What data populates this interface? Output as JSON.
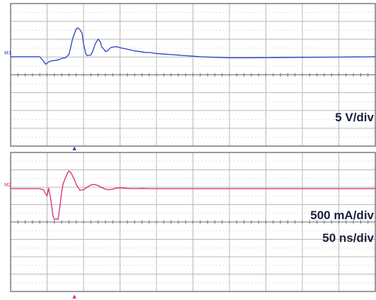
{
  "chart_data": [
    {
      "type": "line",
      "channel_label": "M1",
      "scale_label": "5 V/div",
      "color": "#2a3fc8",
      "x_unit": "ns",
      "x_divisions": 10,
      "y_divisions": 8,
      "trigger_marker": "▲",
      "series": [
        {
          "x": [
            0,
            10,
            20,
            30,
            40,
            45,
            48,
            52,
            55,
            60,
            65,
            70,
            75,
            80,
            85,
            90,
            92,
            95,
            98,
            100,
            103,
            105,
            110,
            113,
            116,
            120,
            123,
            125,
            128,
            130,
            133,
            135,
            137,
            140,
            145,
            150,
            160,
            170,
            180,
            185,
            190,
            200,
            210,
            220,
            230,
            240,
            250,
            260,
            280,
            300,
            330,
            360,
            400,
            450,
            500
          ],
          "y": [
            0,
            0,
            0,
            0,
            0,
            -0.4,
            -0.7,
            -0.5,
            -0.4,
            -0.35,
            -0.3,
            -0.15,
            -0.1,
            0.2,
            1.7,
            2.6,
            2.7,
            2.55,
            2.2,
            1.2,
            0.3,
            0.1,
            0.15,
            0.6,
            1.2,
            1.65,
            1.4,
            0.9,
            0.7,
            0.5,
            0.55,
            0.7,
            0.85,
            0.9,
            0.95,
            0.85,
            0.7,
            0.55,
            0.45,
            0.4,
            0.4,
            0.3,
            0.25,
            0.2,
            0.15,
            0.1,
            0.05,
            0.0,
            -0.05,
            -0.1,
            -0.1,
            -0.08,
            -0.05,
            -0.03,
            0.0
          ]
        }
      ]
    },
    {
      "type": "line",
      "channel_label": "M2",
      "scale_label": "500 mA/div",
      "time_label": "50 ns/div",
      "color": "#d62a7a",
      "x_unit": "ns",
      "x_divisions": 10,
      "y_divisions": 8,
      "trigger_marker": "▲",
      "series": [
        {
          "x": [
            0,
            20,
            40,
            45,
            48,
            50,
            52,
            55,
            58,
            60,
            63,
            65,
            68,
            70,
            72,
            75,
            78,
            80,
            83,
            85,
            88,
            90,
            95,
            100,
            105,
            110,
            115,
            120,
            125,
            130,
            135,
            140,
            145,
            150,
            160,
            170,
            180,
            190,
            200,
            220,
            250,
            300,
            350,
            400,
            450,
            500
          ],
          "y": [
            0,
            0,
            0,
            -0.1,
            -0.5,
            -0.7,
            0.05,
            -1.0,
            -2.6,
            -2.95,
            -2.9,
            -2.95,
            -1.5,
            -0.3,
            0.5,
            1.0,
            1.5,
            1.7,
            1.5,
            1.2,
            0.8,
            0.4,
            -0.15,
            -0.1,
            0.15,
            0.35,
            0.4,
            0.3,
            0.1,
            -0.05,
            -0.1,
            -0.05,
            0.05,
            0.08,
            0.02,
            0.0,
            0.02,
            0.0,
            0.0,
            0.0,
            0.0,
            0.0,
            0.0,
            0.0,
            0.0,
            0.0
          ]
        }
      ]
    }
  ]
}
